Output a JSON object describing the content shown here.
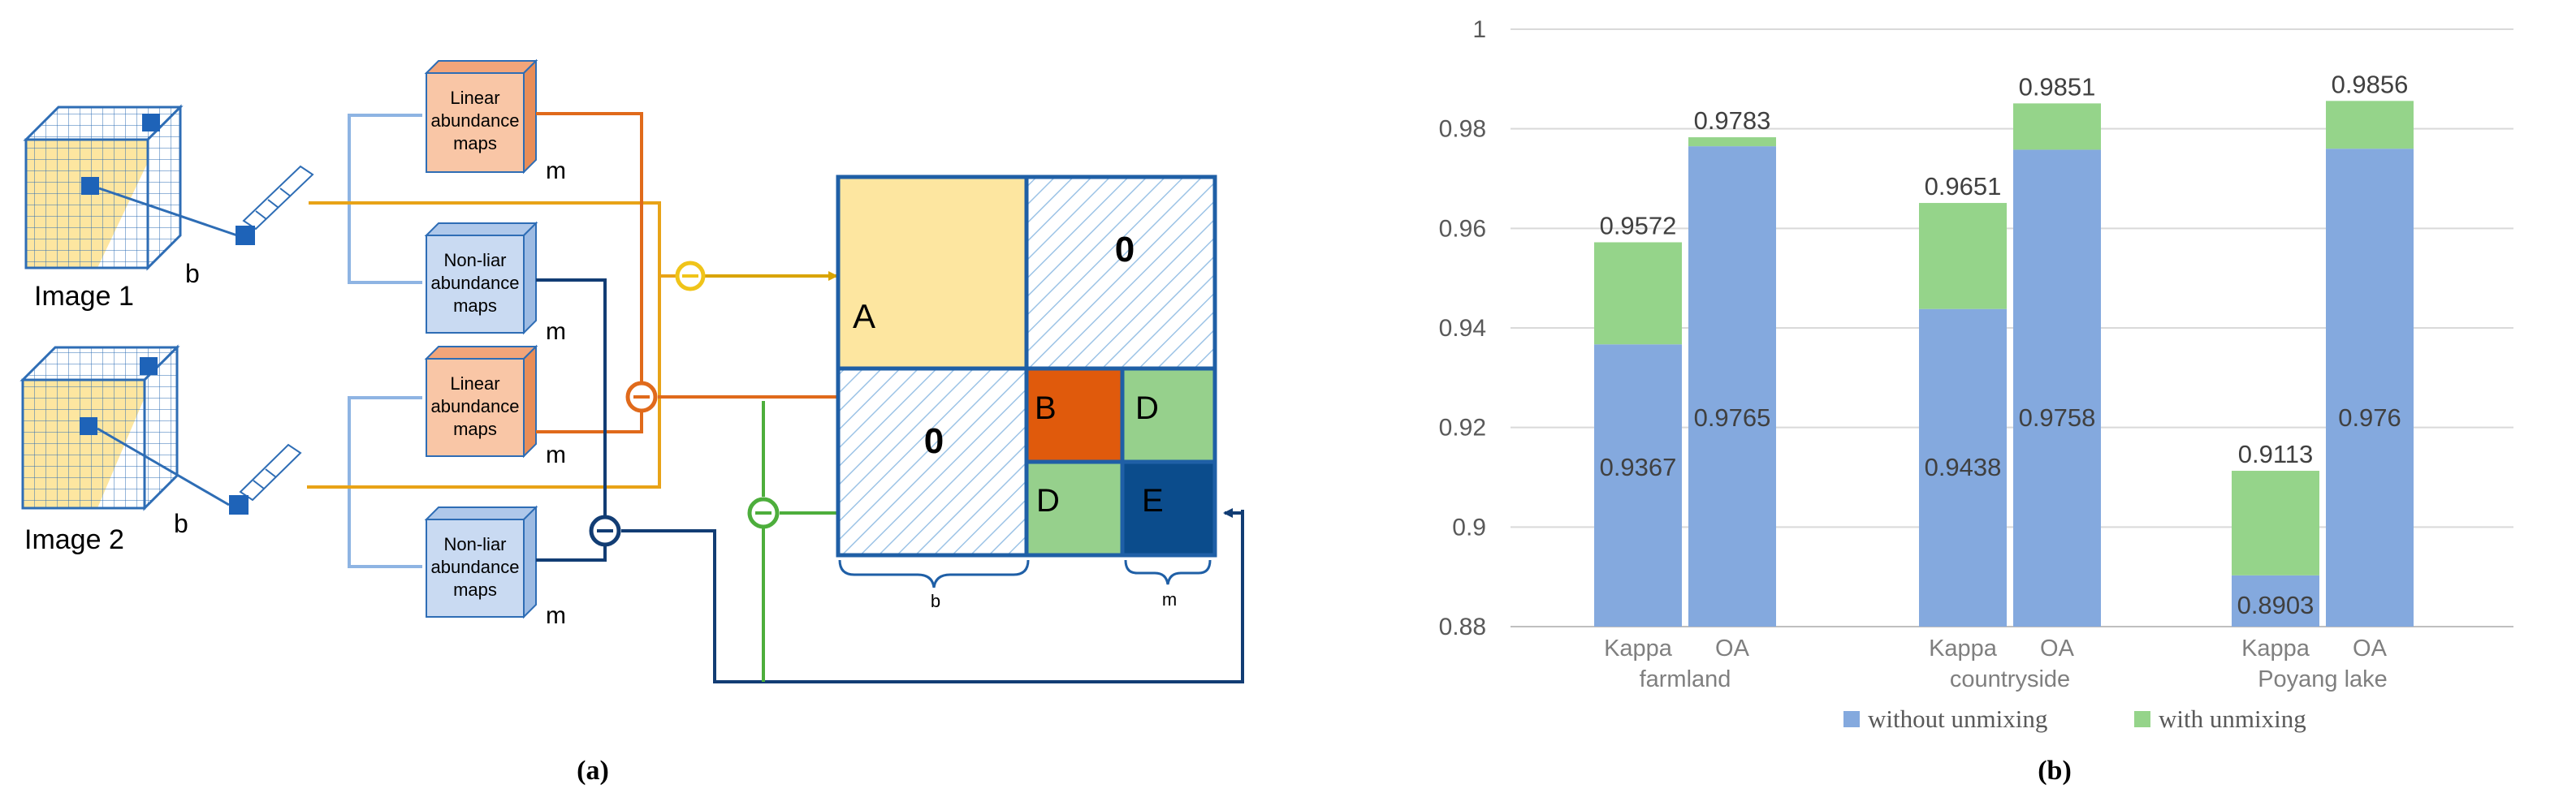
{
  "panel_a": {
    "label": "(a)",
    "image1_label": "Image 1",
    "image2_label": "Image 2",
    "b_label": "b",
    "m_label": "m",
    "linear_maps_label": [
      "Linear",
      "abundance",
      "maps"
    ],
    "nonlinear_maps_label": [
      "Non-liar",
      "abundance",
      "maps"
    ],
    "blocks": {
      "A": "A",
      "zero": "0",
      "B": "B",
      "D": "D",
      "E": "E"
    },
    "brace_b": "b",
    "brace_m": "m",
    "colors": {
      "orange": "#E06A1B",
      "yellow": "#F0C419",
      "green": "#4DAE3C",
      "navy": "#123D74",
      "blue": "#2E6DB5",
      "block_A": "#FDE6A0",
      "block_B": "#E05A0C",
      "block_D": "#96D08C",
      "block_E": "#0B4C8C",
      "linear_box": "#F9C6A6",
      "nonlinear_box": "#C9DAF2"
    }
  },
  "panel_b": {
    "label": "(b)"
  },
  "chart_data": {
    "type": "bar",
    "stacked": true,
    "groups": [
      "farmland",
      "countryside",
      "Poyang lake"
    ],
    "bars": [
      "Kappa",
      "OA"
    ],
    "ylim": [
      0.88,
      1
    ],
    "yticks": [
      "0.88",
      "0.9",
      "0.92",
      "0.94",
      "0.96",
      "0.98",
      "1"
    ],
    "grid": true,
    "legend_position": "bottom",
    "series": [
      {
        "name": "without unmixing",
        "color": "#84A9DE",
        "values": [
          [
            0.9367,
            0.9765
          ],
          [
            0.9438,
            0.9758
          ],
          [
            0.8903,
            0.976
          ]
        ],
        "labels": [
          [
            "0.9367",
            "0.9765"
          ],
          [
            "0.9438",
            "0.9758"
          ],
          [
            "0.8903",
            "0.976"
          ]
        ]
      },
      {
        "name": "with unmixing",
        "color": "#95D48A",
        "values": [
          [
            0.9572,
            0.9783
          ],
          [
            0.9651,
            0.9851
          ],
          [
            0.9113,
            0.9856
          ]
        ],
        "labels": [
          [
            "0.9572",
            "0.9783"
          ],
          [
            "0.9651",
            "0.9851"
          ],
          [
            "0.9113",
            "0.9856"
          ]
        ]
      }
    ]
  }
}
